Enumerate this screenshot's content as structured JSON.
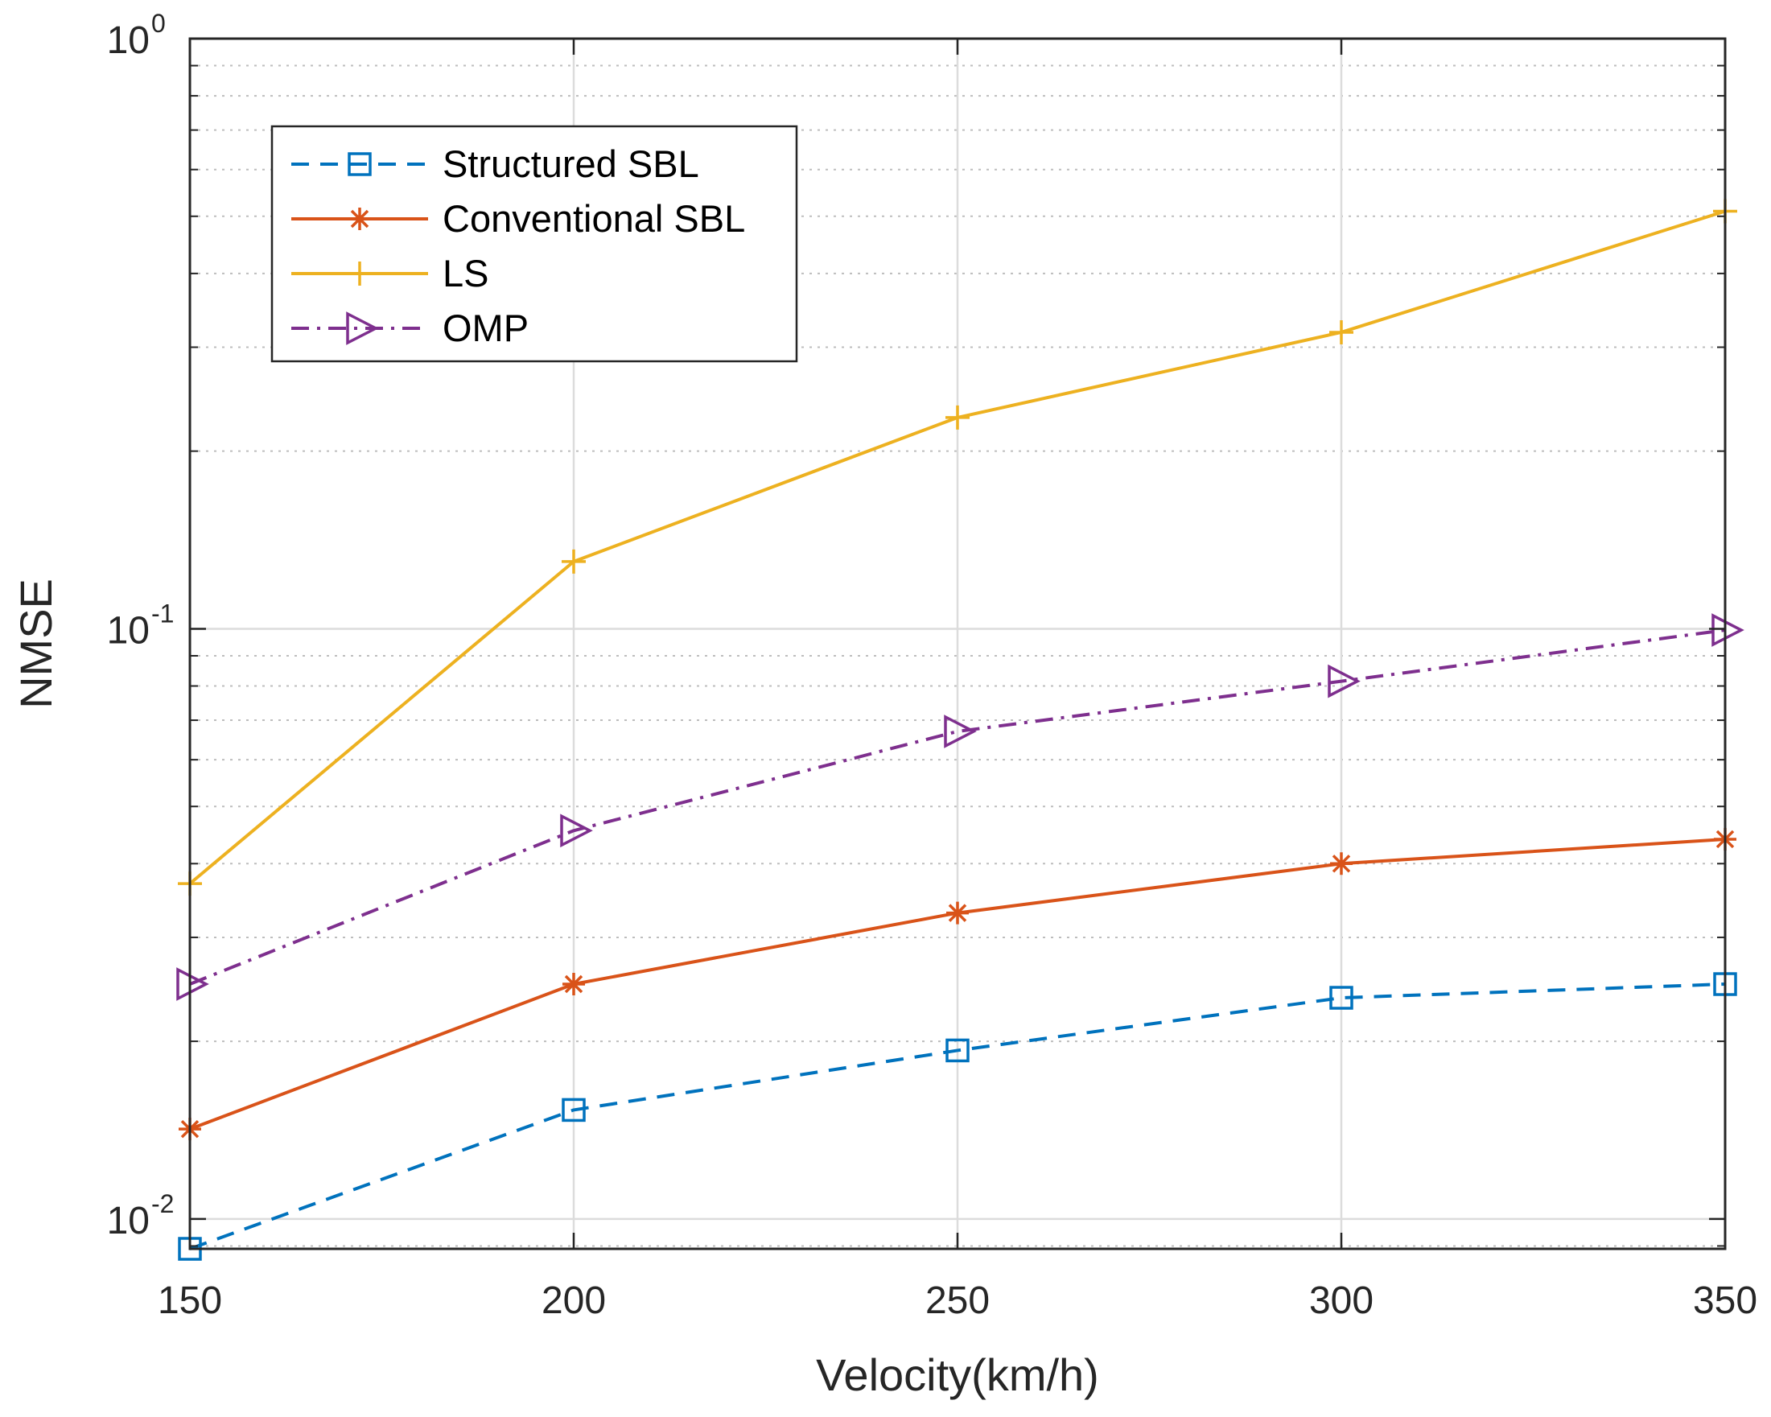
{
  "chart_data": {
    "type": "line",
    "title": "",
    "xlabel": "Velocity(km/h)",
    "ylabel": "NMSE",
    "x": [
      150,
      200,
      250,
      300,
      350
    ],
    "x_ticks": [
      "150",
      "200",
      "250",
      "300",
      "350"
    ],
    "xlim": [
      150,
      350
    ],
    "y_scale": "log",
    "ylim": [
      0.0089,
      1
    ],
    "y_ticks": [
      {
        "value": 1,
        "base": "10",
        "exp": "0"
      },
      {
        "value": 0.1,
        "base": "10",
        "exp": "-1"
      },
      {
        "value": 0.01,
        "base": "10",
        "exp": "-2"
      }
    ],
    "grid": true,
    "legend_placement": "top-left",
    "series": [
      {
        "name": "Structured SBL",
        "color": "#0072BD",
        "line_style": "dashed",
        "marker": "square",
        "values": [
          0.0089,
          0.0153,
          0.0193,
          0.0237,
          0.025
        ]
      },
      {
        "name": "Conventional SBL",
        "color": "#D95319",
        "line_style": "solid",
        "marker": "asterisk",
        "values": [
          0.0142,
          0.025,
          0.033,
          0.04,
          0.044
        ]
      },
      {
        "name": "LS",
        "color": "#EDB120",
        "line_style": "solid",
        "marker": "plus",
        "values": [
          0.037,
          0.13,
          0.228,
          0.318,
          0.51
        ]
      },
      {
        "name": "OMP",
        "color": "#7E2F8E",
        "line_style": "dashdot",
        "marker": "triangle-right",
        "values": [
          0.025,
          0.0455,
          0.067,
          0.0815,
          0.0995
        ]
      }
    ]
  }
}
